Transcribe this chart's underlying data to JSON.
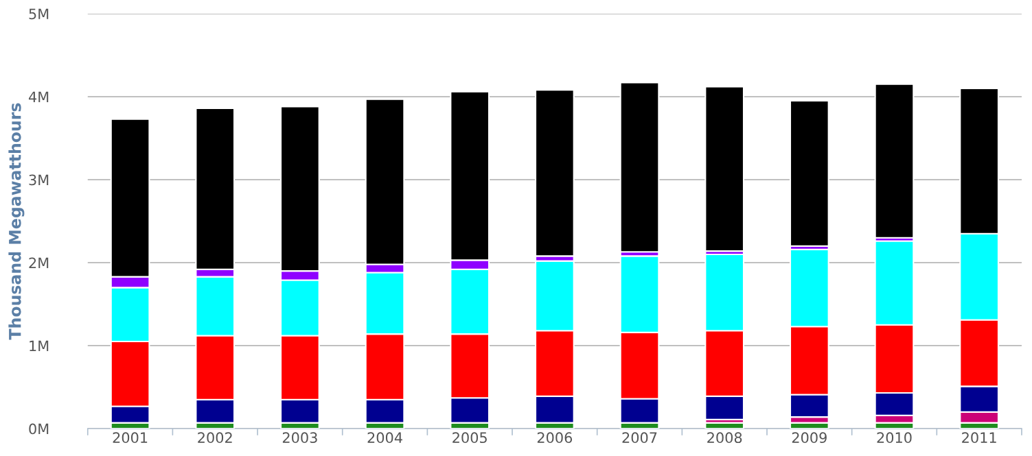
{
  "chart_data": {
    "type": "bar",
    "stacked": true,
    "ylabel": "Thousand Megawatthours",
    "categories": [
      "2001",
      "2002",
      "2003",
      "2004",
      "2005",
      "2006",
      "2007",
      "2008",
      "2009",
      "2010",
      "2011"
    ],
    "series": [
      {
        "color": "#1e8c1e",
        "values": [
          70000,
          70000,
          70000,
          70000,
          70000,
          70000,
          70000,
          70000,
          70000,
          70000,
          70000
        ]
      },
      {
        "color": "#cc0077",
        "values": [
          null,
          null,
          null,
          null,
          null,
          null,
          null,
          40000,
          70000,
          90000,
          130000
        ]
      },
      {
        "color": "#000090",
        "values": [
          200000,
          280000,
          280000,
          280000,
          300000,
          320000,
          290000,
          280000,
          270000,
          270000,
          310000
        ]
      },
      {
        "color": "#ff0000",
        "values": [
          780000,
          770000,
          770000,
          790000,
          770000,
          790000,
          800000,
          790000,
          820000,
          820000,
          800000
        ]
      },
      {
        "color": "#00ffff",
        "values": [
          650000,
          710000,
          670000,
          740000,
          780000,
          840000,
          920000,
          920000,
          930000,
          1010000,
          1040000
        ]
      },
      {
        "color": "#8f00ff",
        "values": [
          130000,
          90000,
          110000,
          100000,
          110000,
          60000,
          50000,
          40000,
          40000,
          40000,
          null
        ]
      },
      {
        "color": "#000000",
        "values": [
          1900000,
          1940000,
          1980000,
          1990000,
          2030000,
          2000000,
          2040000,
          1980000,
          1750000,
          1850000,
          1750000
        ]
      }
    ],
    "ylim": [
      0,
      5000000
    ],
    "yticks": [
      {
        "value": 0,
        "label": "0M"
      },
      {
        "value": 1000000,
        "label": "1M"
      },
      {
        "value": 2000000,
        "label": "2M"
      },
      {
        "value": 3000000,
        "label": "3M"
      },
      {
        "value": 4000000,
        "label": "4M"
      },
      {
        "value": 5000000,
        "label": "5M"
      }
    ],
    "grid": "y",
    "legend": false
  }
}
